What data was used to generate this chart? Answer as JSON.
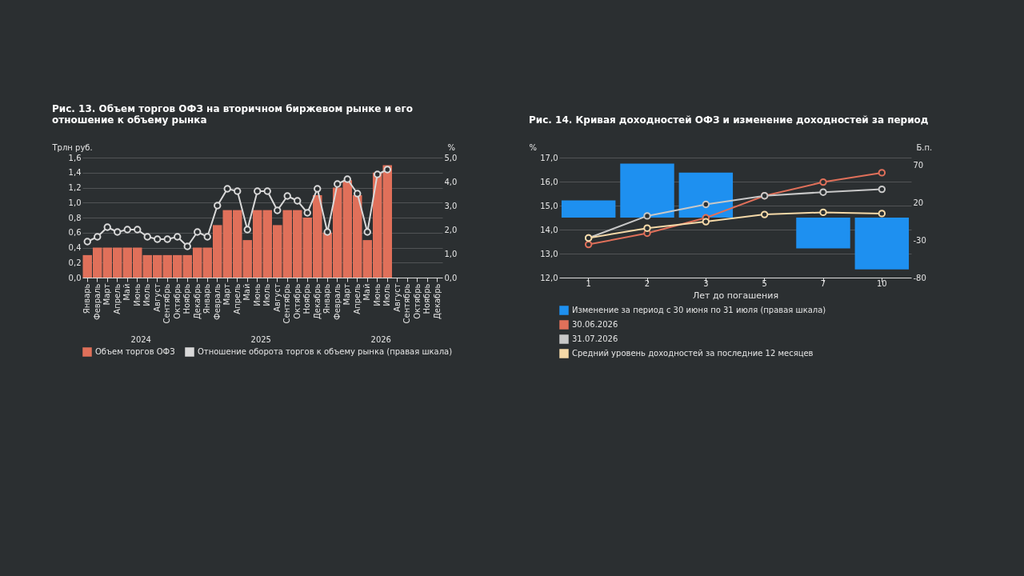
{
  "chart_data": [
    {
      "type": "bar",
      "title": "Рис. 13. Объем торгов ОФЗ на вторичном биржевом рынке и его отношение к объему рынка",
      "ylabel": "Трлн руб.",
      "y2label": "%",
      "categories": [
        "Январь",
        "Февраль",
        "Март",
        "Апрель",
        "Май",
        "Июнь",
        "Июль",
        "Август",
        "Сентябрь",
        "Октябрь",
        "Ноябрь",
        "Декабрь",
        "Январь",
        "Февраль",
        "Март",
        "Апрель",
        "Май",
        "Июнь",
        "Июль",
        "Август",
        "Сентябрь",
        "Октябрь",
        "Ноябрь",
        "Декабрь",
        "Январь",
        "Февраль",
        "Март",
        "Апрель",
        "Май",
        "Июнь",
        "Июль",
        "Август",
        "Сентябрь",
        "Октябрь",
        "Ноябрь",
        "Декабрь"
      ],
      "series": [
        {
          "name": "Объем торгов ОФЗ",
          "color": "#e0705a",
          "values": [
            0.3,
            0.4,
            0.4,
            0.4,
            0.4,
            0.4,
            0.3,
            0.3,
            0.3,
            0.3,
            0.3,
            0.4,
            0.4,
            0.7,
            0.9,
            0.9,
            0.5,
            0.9,
            0.9,
            0.7,
            0.9,
            0.9,
            0.8,
            1.1,
            0.6,
            1.2,
            1.3,
            1.1,
            0.5,
            1.4,
            1.5,
            null,
            null,
            null,
            null,
            null
          ]
        },
        {
          "name": "Отношение оборота торгов к объему рынка (правая шкала)",
          "type": "line",
          "axis": "y2",
          "color": "#d9d9d9",
          "values": [
            1.5,
            1.7,
            2.1,
            1.9,
            2.0,
            2.0,
            1.7,
            1.6,
            1.6,
            1.7,
            1.3,
            1.9,
            1.7,
            3.0,
            3.7,
            3.6,
            2.0,
            3.6,
            3.6,
            2.8,
            3.4,
            3.2,
            2.7,
            3.7,
            1.9,
            3.9,
            4.1,
            3.5,
            1.9,
            4.3,
            4.5,
            null,
            null,
            null,
            null,
            null
          ]
        }
      ],
      "ylim": [
        0,
        1.6
      ],
      "yticks": [
        {
          "value": 0,
          "label": "0,0"
        },
        {
          "value": 0.2,
          "label": "0,2"
        },
        {
          "value": 0.4,
          "label": "0,4"
        },
        {
          "value": 0.6,
          "label": "0,6"
        },
        {
          "value": 0.8,
          "label": "0,8"
        },
        {
          "value": 1,
          "label": "1,0"
        },
        {
          "value": 1.2,
          "label": "1,2"
        },
        {
          "value": 1.4,
          "label": "1,4"
        },
        {
          "value": 1.6,
          "label": "1,6"
        }
      ],
      "y2lim": [
        0,
        5
      ],
      "y2ticks": [
        {
          "value": 0,
          "label": "0,0"
        },
        {
          "value": 1,
          "label": "1,0"
        },
        {
          "value": 2,
          "label": "2,0"
        },
        {
          "value": 3,
          "label": "3,0"
        },
        {
          "value": 4,
          "label": "4,0"
        },
        {
          "value": 5,
          "label": "5,0"
        }
      ],
      "annotations": [
        "2024",
        "2025",
        "2026"
      ],
      "grid": "y",
      "legend": "bottom",
      "marker": "circle"
    },
    {
      "type": "line",
      "title": "Рис. 14. Кривая доходностей ОФЗ и изменение доходностей за период",
      "ylabel": "%",
      "y2label": "Б.п.",
      "xlabel": "Лет до погашения",
      "categories": [
        "1",
        "2",
        "3",
        "5",
        "7",
        "10"
      ],
      "series": [
        {
          "name": "Изменение за период с 30 июня по 31 июля (правая шкала)",
          "type": "bar",
          "axis": "y2",
          "color": "#1e90f0",
          "values": [
            23,
            72,
            60,
            null,
            -41,
            -69
          ]
        },
        {
          "name": "30.06.2026",
          "color": "#e0705a",
          "values": [
            13.38,
            13.85,
            14.49,
            15.41,
            15.98,
            16.37
          ]
        },
        {
          "name": "31.07.2026",
          "color": "#c8c8c8",
          "values": [
            13.65,
            14.57,
            15.05,
            15.41,
            15.56,
            15.68
          ]
        },
        {
          "name": "Средний уровень доходностей за последние 12 месяцев",
          "color": "#f5d9a8",
          "values": [
            13.65,
            14.06,
            14.33,
            14.63,
            14.72,
            14.67
          ]
        }
      ],
      "ylim": [
        12,
        17
      ],
      "yticks": [
        {
          "value": 12,
          "label": "12,0"
        },
        {
          "value": 13,
          "label": "13,0"
        },
        {
          "value": 14,
          "label": "14,0"
        },
        {
          "value": 15,
          "label": "15,0"
        },
        {
          "value": 16,
          "label": "16,0"
        },
        {
          "value": 17,
          "label": "17,0"
        }
      ],
      "y2lim": [
        -80,
        80
      ],
      "y2ticks": [
        -80,
        -30,
        20,
        70
      ],
      "grid": "y",
      "legend": "bottom",
      "marker": "circle"
    }
  ]
}
